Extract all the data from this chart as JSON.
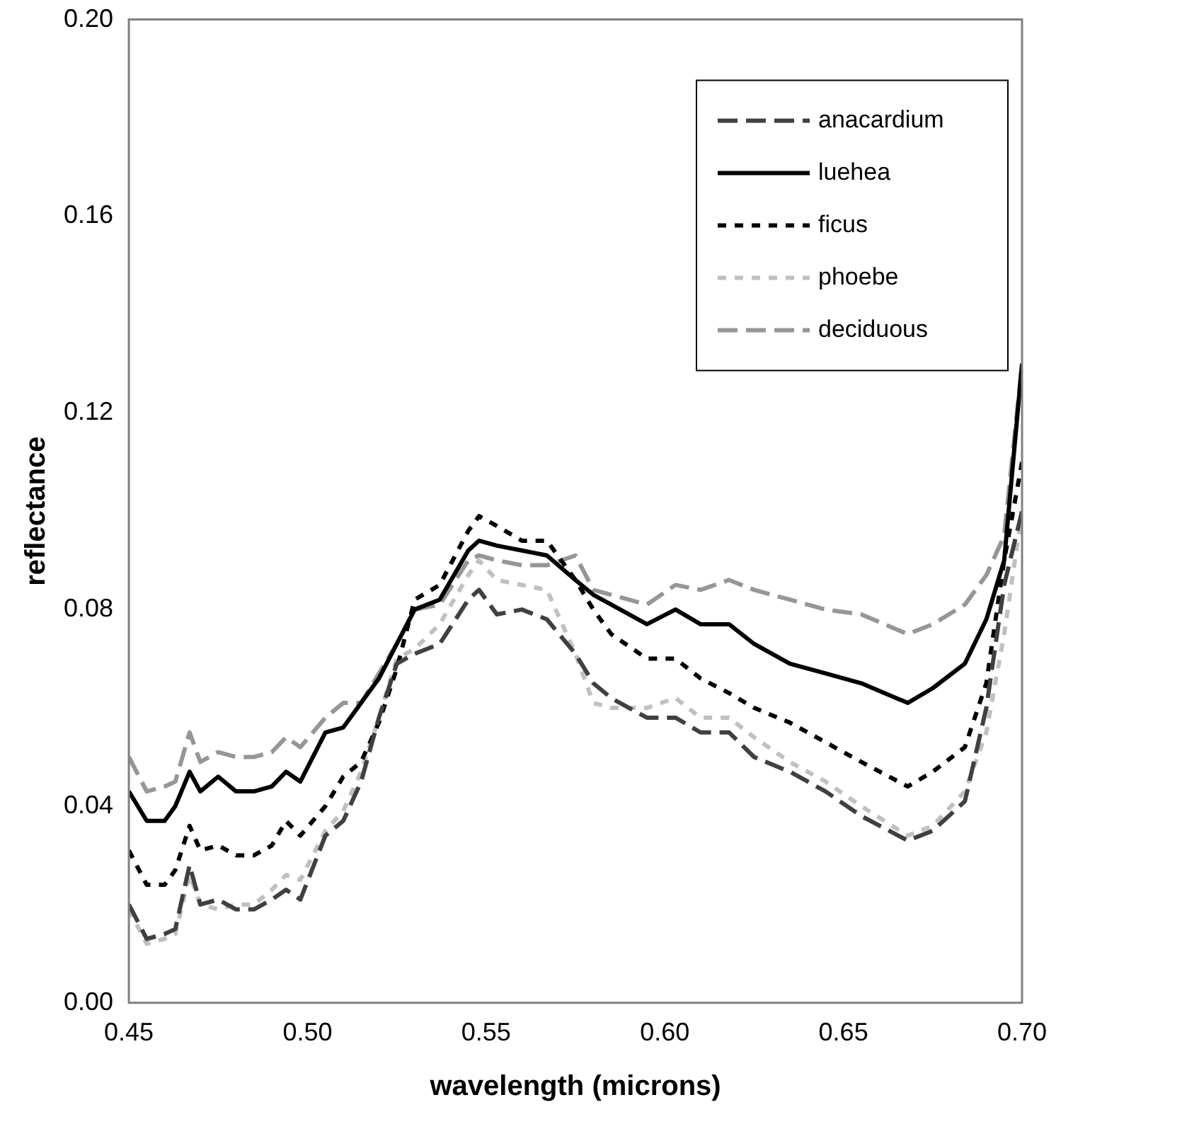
{
  "chart_data": {
    "type": "line",
    "xlabel": "wavelength (microns)",
    "ylabel": "reflectance",
    "xlim": [
      0.45,
      0.7
    ],
    "xticks": [
      0.45,
      {
        "value": 0.5,
        "label": "0.50"
      },
      0.55,
      {
        "value": 0.6,
        "label": "0.60"
      },
      0.65,
      {
        "value": 0.7,
        "label": "0.70"
      }
    ],
    "ylim": [
      0,
      0.2
    ],
    "yticks": [
      {
        "value": 0,
        "label": "0.00"
      },
      0.04,
      0.08,
      0.12,
      0.16,
      {
        "value": 0.2,
        "label": "0.20"
      }
    ],
    "grid": false,
    "legend": "top right",
    "marker": "none",
    "x": [
      0.45,
      0.455,
      0.46,
      0.463,
      0.467,
      0.47,
      0.475,
      0.48,
      0.485,
      0.49,
      0.494,
      0.498,
      0.505,
      0.51,
      0.515,
      0.52,
      0.525,
      0.53,
      0.537,
      0.545,
      0.548,
      0.553,
      0.56,
      0.567,
      0.575,
      0.58,
      0.585,
      0.595,
      0.603,
      0.61,
      0.618,
      0.625,
      0.635,
      0.645,
      0.655,
      0.668,
      0.675,
      0.684,
      0.69,
      0.695,
      0.7
    ],
    "series": [
      {
        "name": "anacardium",
        "color": "#404040",
        "line_style": "dashed",
        "values": [
          0.02,
          0.013,
          0.014,
          0.015,
          0.028,
          0.02,
          0.021,
          0.019,
          0.019,
          0.021,
          0.023,
          0.021,
          0.034,
          0.037,
          0.045,
          0.058,
          0.069,
          0.071,
          0.073,
          0.082,
          0.084,
          0.079,
          0.08,
          0.078,
          0.071,
          0.065,
          0.062,
          0.058,
          0.058,
          0.055,
          0.055,
          0.05,
          0.047,
          0.043,
          0.038,
          0.033,
          0.035,
          0.041,
          0.06,
          0.085,
          0.1
        ]
      },
      {
        "name": "luehea",
        "color": "#000000",
        "line_style": "solid",
        "values": [
          0.043,
          0.037,
          0.037,
          0.04,
          0.047,
          0.043,
          0.046,
          0.043,
          0.043,
          0.044,
          0.047,
          0.045,
          0.055,
          0.056,
          0.061,
          0.066,
          0.073,
          0.08,
          0.082,
          0.092,
          0.094,
          0.093,
          0.092,
          0.091,
          0.086,
          0.083,
          0.081,
          0.077,
          0.08,
          0.077,
          0.077,
          0.073,
          0.069,
          0.067,
          0.065,
          0.061,
          0.064,
          0.069,
          0.078,
          0.09,
          0.13
        ]
      },
      {
        "name": "ficus",
        "color": "#000000",
        "line_style": "dotted",
        "values": [
          0.031,
          0.024,
          0.024,
          0.027,
          0.036,
          0.031,
          0.032,
          0.03,
          0.03,
          0.032,
          0.037,
          0.034,
          0.04,
          0.046,
          0.049,
          0.057,
          0.068,
          0.082,
          0.085,
          0.096,
          0.099,
          0.097,
          0.094,
          0.094,
          0.086,
          0.08,
          0.075,
          0.07,
          0.07,
          0.066,
          0.063,
          0.06,
          0.057,
          0.053,
          0.049,
          0.044,
          0.047,
          0.052,
          0.065,
          0.09,
          0.11
        ]
      },
      {
        "name": "phoebe",
        "color": "#c0c0c0",
        "line_style": "dotted",
        "values": [
          0.019,
          0.012,
          0.013,
          0.014,
          0.026,
          0.02,
          0.019,
          0.02,
          0.02,
          0.023,
          0.026,
          0.025,
          0.035,
          0.039,
          0.047,
          0.058,
          0.07,
          0.072,
          0.077,
          0.087,
          0.09,
          0.086,
          0.085,
          0.084,
          0.071,
          0.061,
          0.06,
          0.06,
          0.062,
          0.058,
          0.058,
          0.054,
          0.049,
          0.045,
          0.04,
          0.034,
          0.036,
          0.043,
          0.055,
          0.075,
          0.1
        ]
      },
      {
        "name": "deciduous",
        "color": "#969696",
        "line_style": "dashed",
        "values": [
          0.05,
          0.043,
          0.044,
          0.045,
          0.055,
          0.049,
          0.051,
          0.05,
          0.05,
          0.051,
          0.054,
          0.052,
          0.058,
          0.061,
          0.061,
          0.067,
          0.073,
          0.08,
          0.081,
          0.09,
          0.091,
          0.09,
          0.089,
          0.089,
          0.091,
          0.084,
          0.083,
          0.081,
          0.085,
          0.084,
          0.086,
          0.084,
          0.082,
          0.08,
          0.079,
          0.075,
          0.077,
          0.081,
          0.087,
          0.095,
          0.13
        ]
      }
    ]
  }
}
